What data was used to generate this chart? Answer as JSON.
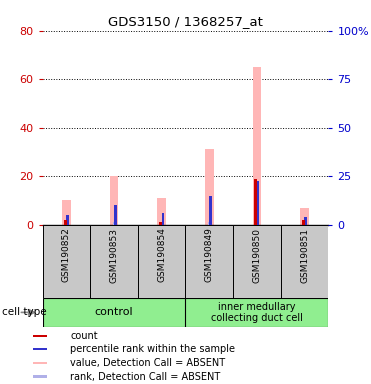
{
  "title": "GDS3150 / 1368257_at",
  "samples": [
    "GSM190852",
    "GSM190853",
    "GSM190854",
    "GSM190849",
    "GSM190850",
    "GSM190851"
  ],
  "left_ylim": [
    0,
    80
  ],
  "right_ylim": [
    0,
    100
  ],
  "left_yticks": [
    0,
    20,
    40,
    60,
    80
  ],
  "right_yticks": [
    0,
    25,
    50,
    75,
    100
  ],
  "right_yticklabels": [
    "0",
    "25",
    "50",
    "75",
    "100%"
  ],
  "left_ycolor": "#cc0000",
  "right_ycolor": "#0000cc",
  "bar_values": {
    "pink_value": [
      10,
      20,
      11,
      31,
      65,
      7
    ],
    "red_count": [
      2,
      0,
      1,
      0,
      19,
      2
    ],
    "blue_percentile": [
      4,
      8,
      5,
      12,
      18,
      3
    ],
    "lightblue_rank": [
      1,
      1,
      1,
      1,
      1,
      1
    ]
  },
  "colors": {
    "red": "#cc0000",
    "blue": "#3333cc",
    "pink": "#ffb6b6",
    "lightblue": "#b0b0e8",
    "bg_label": "#c8c8c8",
    "bg_group": "#90ee90",
    "white": "#ffffff"
  },
  "legend": [
    {
      "color": "#cc0000",
      "label": "count"
    },
    {
      "color": "#3333cc",
      "label": "percentile rank within the sample"
    },
    {
      "color": "#ffb6b6",
      "label": "value, Detection Call = ABSENT"
    },
    {
      "color": "#b0b0e8",
      "label": "rank, Detection Call = ABSENT"
    }
  ],
  "cell_type_label": "cell type",
  "group1_name": "control",
  "group2_name": "inner medullary\ncollecting duct cell"
}
